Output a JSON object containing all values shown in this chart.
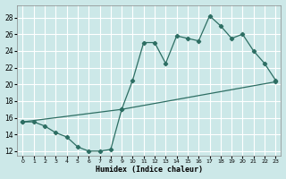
{
  "xlabel": "Humidex (Indice chaleur)",
  "background_color": "#cce8e8",
  "grid_color": "#ffffff",
  "line_color": "#2d6e63",
  "xlim": [
    -0.5,
    23.5
  ],
  "ylim": [
    11.5,
    29.5
  ],
  "xticks": [
    0,
    1,
    2,
    3,
    4,
    5,
    6,
    7,
    8,
    9,
    10,
    11,
    12,
    13,
    14,
    15,
    16,
    17,
    18,
    19,
    20,
    21,
    22,
    23
  ],
  "yticks": [
    12,
    14,
    16,
    18,
    20,
    22,
    24,
    26,
    28
  ],
  "line1_x": [
    0,
    1,
    2,
    3,
    4,
    5,
    6,
    7,
    8,
    9,
    10,
    11,
    12,
    13,
    14,
    15,
    16,
    17,
    18,
    19,
    20,
    21,
    22,
    23
  ],
  "line1_y": [
    15.5,
    15.5,
    15.0,
    14.2,
    13.7,
    12.5,
    12.0,
    12.0,
    12.2,
    17.0,
    20.5,
    25.0,
    25.0,
    22.5,
    25.8,
    25.5,
    25.2,
    28.2,
    27.0,
    25.5,
    26.0,
    24.0,
    22.5,
    20.5
  ],
  "line2_x": [
    0,
    9,
    23
  ],
  "line2_y": [
    15.5,
    17.0,
    20.3
  ]
}
